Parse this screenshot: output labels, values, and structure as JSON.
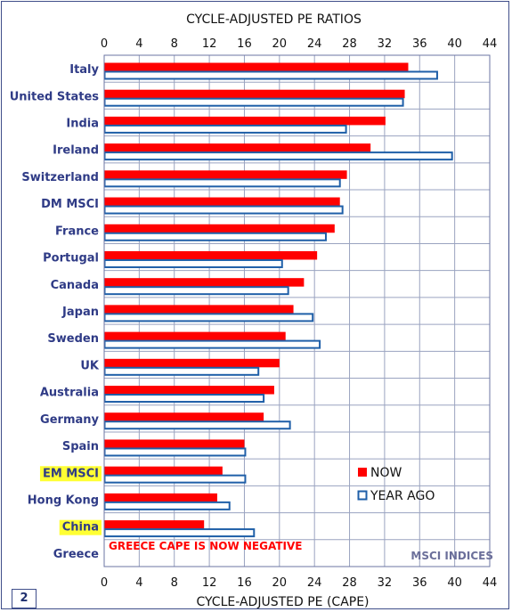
{
  "chart_data": {
    "type": "bar",
    "orientation": "horizontal",
    "title": "CYCLE-ADJUSTED PE RATIOS",
    "xlabel": "CYCLE-ADJUSTED PE (CAPE)",
    "xlim": [
      0,
      44
    ],
    "xticks": [
      0,
      4,
      8,
      12,
      16,
      20,
      24,
      28,
      32,
      36,
      40,
      44
    ],
    "grid": true,
    "categories": [
      "Italy",
      "United States",
      "India",
      "Ireland",
      "Switzerland",
      "DM MSCI",
      "France",
      "Portugal",
      "Canada",
      "Japan",
      "Sweden",
      "UK",
      "Australia",
      "Germany",
      "Spain",
      "EM MSCI",
      "Hong Kong",
      "China",
      "Greece"
    ],
    "highlighted_categories": [
      "EM MSCI",
      "China"
    ],
    "series": [
      {
        "name": "NOW",
        "color": "#ff0000",
        "style": "filled",
        "values": [
          34.7,
          34.3,
          32.1,
          30.4,
          27.7,
          26.9,
          26.3,
          24.3,
          22.8,
          21.6,
          20.7,
          20.0,
          19.4,
          18.2,
          16.0,
          13.5,
          12.9,
          11.4,
          0
        ]
      },
      {
        "name": "YEAR AGO",
        "color": "#1f5fa8",
        "style": "outline",
        "values": [
          38.0,
          34.1,
          27.6,
          39.7,
          26.9,
          27.2,
          25.3,
          20.3,
          21.0,
          23.8,
          24.6,
          17.6,
          18.2,
          21.2,
          16.1,
          16.1,
          14.3,
          17.1,
          0
        ]
      }
    ],
    "legend": {
      "placement": "lower-right",
      "entries": [
        "NOW",
        "YEAR AGO"
      ]
    },
    "annotations": {
      "greece_note": "GREECE CAPE IS NOW NEGATIVE",
      "source": "MSCI INDICES"
    },
    "colors": {
      "now": "#ff0000",
      "year_ago": "#1f5fa8",
      "label_text": "#2f3b86",
      "highlight": "#ffff33",
      "grid": "#9aa3c0"
    }
  },
  "page_number": "2"
}
